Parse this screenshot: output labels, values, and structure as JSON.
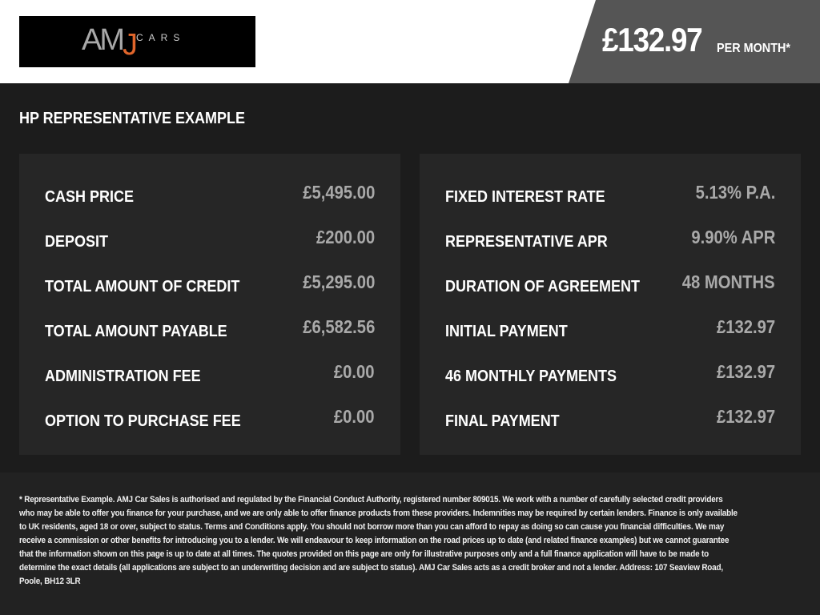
{
  "header": {
    "logo_text": "AMJ CARS",
    "logo_amj": "AM",
    "logo_j": "J",
    "logo_cars": "CARS",
    "price": "£132.97",
    "per_month": "PER MONTH*"
  },
  "section_title": "HP REPRESENTATIVE EXAMPLE",
  "left_rows": [
    {
      "label": "CASH PRICE",
      "value": "£5,495.00"
    },
    {
      "label": "DEPOSIT",
      "value": "£200.00"
    },
    {
      "label": "TOTAL AMOUNT OF CREDIT",
      "value": "£5,295.00"
    },
    {
      "label": "TOTAL AMOUNT PAYABLE",
      "value": "£6,582.56"
    },
    {
      "label": "ADMINISTRATION FEE",
      "value": "£0.00"
    },
    {
      "label": "OPTION TO PURCHASE FEE",
      "value": "£0.00"
    }
  ],
  "right_rows": [
    {
      "label": "FIXED INTEREST RATE",
      "value": "5.13% P.A."
    },
    {
      "label": "REPRESENTATIVE APR",
      "value": "9.90% APR"
    },
    {
      "label": "DURATION OF AGREEMENT",
      "value": "48 MONTHS"
    },
    {
      "label": "INITIAL PAYMENT",
      "value": "£132.97"
    },
    {
      "label": "46 MONTHLY PAYMENTS",
      "value": "£132.97"
    },
    {
      "label": "FINAL PAYMENT",
      "value": "£132.97"
    }
  ],
  "disclaimer": "* Representative Example. AMJ Car Sales is authorised and regulated by the Financial Conduct Authority, registered number 809015. We work with a number of carefully selected credit providers who may be able to offer you finance for your purchase, and we are only able to offer finance products from these providers. Indemnities may be required by certain lenders. Finance is only available to UK residents, aged 18 or over, subject to status. Terms and Conditions apply. You should not borrow more than you can afford to repay as doing so can cause you financial difficulties. We may receive a commission or other benefits for introducing you to a lender. We will endeavour to keep information on the road prices up to date (and related finance examples) but we cannot guarantee that the information shown on this page is up to date at all times. The quotes provided on this page are only for illustrative purposes only and a full finance application will have to be made to determine the exact details (all applications are subject to an underwriting decision and are subject to status). AMJ Car Sales acts as a credit broker and not a lender. Address: 107 Seaview Road, Poole, BH12 3LR",
  "colors": {
    "accent": "#e0652b",
    "header_price_bg": "#555555",
    "panel_bg": "#262626",
    "value_text": "#a9a9a9"
  }
}
